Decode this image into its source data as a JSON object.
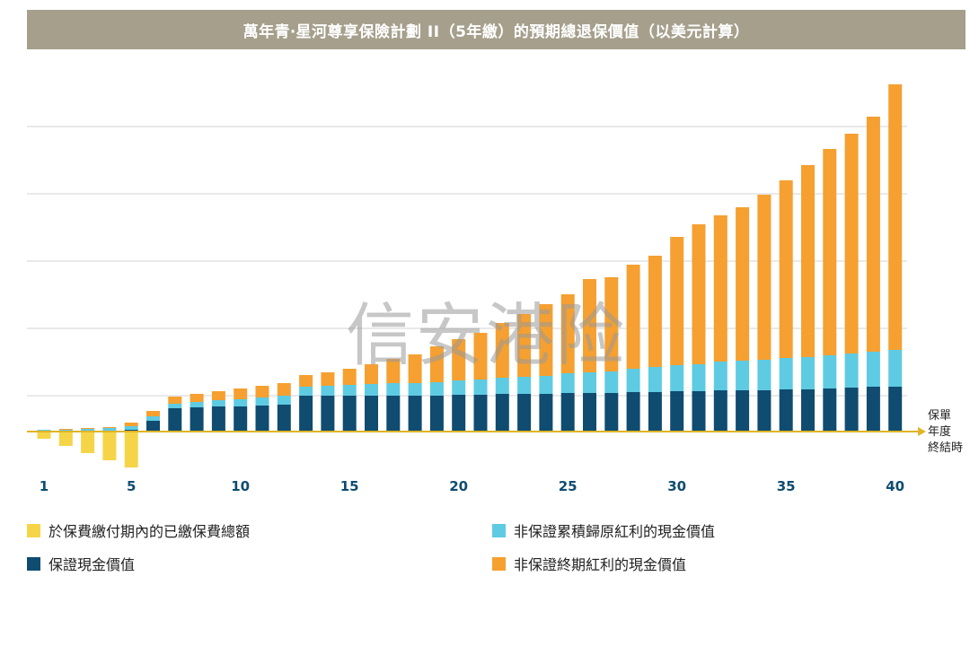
{
  "chart_data": {
    "type": "bar",
    "stacked": true,
    "title": "萬年青‧星河尊享保險計劃 II（5年繳）的預期總退保價值（以美元計算）",
    "xlabel_lines": [
      "保單",
      "年度",
      "終結時"
    ],
    "ylabel": "",
    "grid": true,
    "y_unit_note": "relative scale, no y-axis labels shown",
    "ylim": [
      -40,
      400
    ],
    "x_tick_labels": [
      "1",
      "5",
      "10",
      "15",
      "20",
      "25",
      "30",
      "35",
      "40"
    ],
    "categories": [
      1,
      2,
      3,
      4,
      5,
      6,
      7,
      8,
      9,
      10,
      11,
      12,
      13,
      14,
      15,
      16,
      17,
      18,
      19,
      20,
      21,
      22,
      23,
      24,
      25,
      26,
      27,
      28,
      29,
      30,
      31,
      32,
      33,
      34,
      35,
      36,
      37,
      38,
      39,
      40
    ],
    "series": [
      {
        "name": "於保費繳付期內的已繳保費總額",
        "color": "#f5d547",
        "values": [
          -8,
          -16,
          -24,
          -32,
          -40,
          0,
          0,
          0,
          0,
          0,
          0,
          0,
          0,
          0,
          0,
          0,
          0,
          0,
          0,
          0,
          0,
          0,
          0,
          0,
          0,
          0,
          0,
          0,
          0,
          0,
          0,
          0,
          0,
          0,
          0,
          0,
          0,
          0,
          0,
          0
        ]
      },
      {
        "name": "保證現金價值",
        "color": "#0f4c70",
        "values": [
          0,
          0,
          0,
          0,
          2,
          12,
          26,
          27,
          28,
          28,
          29,
          30,
          40,
          40,
          40,
          40,
          40,
          40,
          40,
          41,
          41,
          42,
          42,
          42,
          43,
          43,
          43,
          44,
          44,
          45,
          45,
          46,
          46,
          46,
          47,
          47,
          48,
          49,
          50,
          50
        ]
      },
      {
        "name": "非保證累積歸原紅利的現金價值",
        "color": "#5ecbe3",
        "values": [
          2,
          2,
          3,
          4,
          4,
          5,
          5,
          6,
          7,
          8,
          9,
          10,
          10,
          11,
          12,
          13,
          14,
          14,
          15,
          16,
          17,
          18,
          19,
          20,
          22,
          23,
          24,
          26,
          28,
          29,
          30,
          32,
          33,
          34,
          35,
          36,
          37,
          38,
          39,
          41
        ]
      },
      {
        "name": "非保證終期紅利的現金價值",
        "color": "#f5a030",
        "values": [
          0,
          1,
          1,
          1,
          4,
          6,
          8,
          9,
          10,
          12,
          13,
          14,
          13,
          15,
          18,
          22,
          27,
          32,
          40,
          46,
          52,
          61,
          70,
          80,
          88,
          104,
          105,
          116,
          124,
          143,
          156,
          163,
          171,
          184,
          198,
          214,
          230,
          245,
          262,
          296
        ]
      }
    ]
  },
  "legend": {
    "items": [
      {
        "label": "於保費繳付期內的已繳保費總額",
        "color": "#f5d547"
      },
      {
        "label": "非保證累積歸原紅利的現金價值",
        "color": "#5ecbe3"
      },
      {
        "label": "保證現金價值",
        "color": "#0f4c70"
      },
      {
        "label": "非保證終期紅利的現金價值",
        "color": "#f5a030"
      }
    ]
  },
  "watermark": "信安港险",
  "colors": {
    "title_bg": "#a59f8c",
    "axis_line": "#e0b426",
    "gridline": "#d3d3d3",
    "tick_label": "#0f4c70"
  }
}
